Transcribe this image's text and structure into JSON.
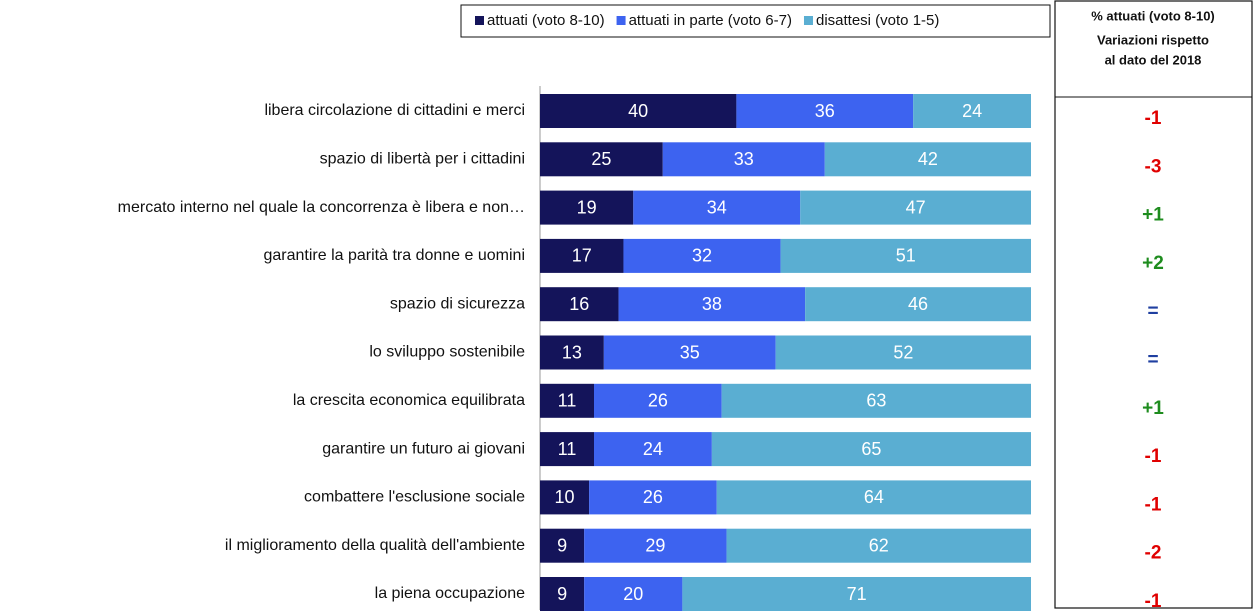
{
  "chart_data": {
    "type": "bar",
    "orientation": "horizontal",
    "stacked": true,
    "categories": [
      "libera circolazione di cittadini e merci",
      "spazio di libertà per i cittadini",
      "mercato interno nel quale la concorrenza è libera e non…",
      "garantire la parità tra donne e uomini",
      "spazio di sicurezza",
      "lo sviluppo sostenibile",
      "la crescita economica equilibrata",
      "garantire un futuro ai giovani",
      "combattere l'esclusione sociale",
      "il miglioramento della qualità dell'ambiente",
      "la piena occupazione"
    ],
    "series": [
      {
        "name": "attuati (voto 8-10)",
        "color": "#14145a",
        "values": [
          40,
          25,
          19,
          17,
          16,
          13,
          11,
          11,
          10,
          9,
          9
        ]
      },
      {
        "name": "attuati in parte (voto 6-7)",
        "color": "#3d63f0",
        "values": [
          36,
          33,
          34,
          32,
          38,
          35,
          26,
          24,
          26,
          29,
          20
        ]
      },
      {
        "name": "disattesi (voto 1-5)",
        "color": "#5aaed2",
        "values": [
          24,
          42,
          47,
          51,
          46,
          52,
          63,
          65,
          64,
          62,
          71
        ]
      }
    ],
    "xlim": [
      0,
      100
    ],
    "legend": "top"
  },
  "table": {
    "header": [
      "% attuati (voto 8-10)",
      "Variazioni rispetto",
      "al dato del 2018"
    ],
    "rows": [
      "-1",
      "-3",
      "+1",
      "+2",
      "=",
      "=",
      "+1",
      "-1",
      "-1",
      "-2",
      "-1"
    ]
  }
}
